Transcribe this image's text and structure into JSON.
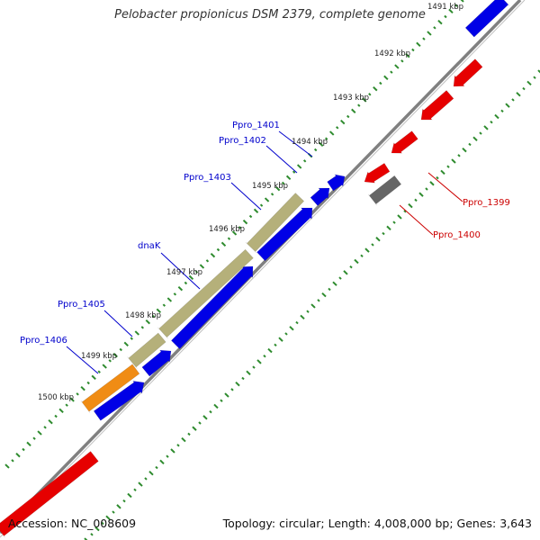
{
  "title": "Pelobacter propionicus DSM 2379, complete genome",
  "footer": {
    "accession": "Accession: NC_008609",
    "summary": "Topology: circular; Length: 4,008,000 bp; Genes: 3,643"
  },
  "colors": {
    "backbone": "#808080",
    "tick_dots": "#2e8b2e",
    "forward_gene": "#0000e6",
    "reverse_gene": "#e60000",
    "label_forward": "#0000cc",
    "label_reverse": "#cc0000",
    "dnak_operon": "#b5b07a",
    "ppro1406_gene": "#f08c14",
    "ppro1400_gene": "#707070"
  },
  "position_labels": [
    "1491 kbp",
    "1492 kbp",
    "1493 kbp",
    "1494 kbp",
    "1495 kbp",
    "1496 kbp",
    "1497 kbp",
    "1498 kbp",
    "1499 kbp",
    "1500 kbp"
  ],
  "gene_labels": [
    "Ppro_1401",
    "Ppro_1402",
    "Ppro_1403",
    "dnaK",
    "Ppro_1405",
    "Ppro_1406",
    "Ppro_1399",
    "Ppro_1400"
  ]
}
